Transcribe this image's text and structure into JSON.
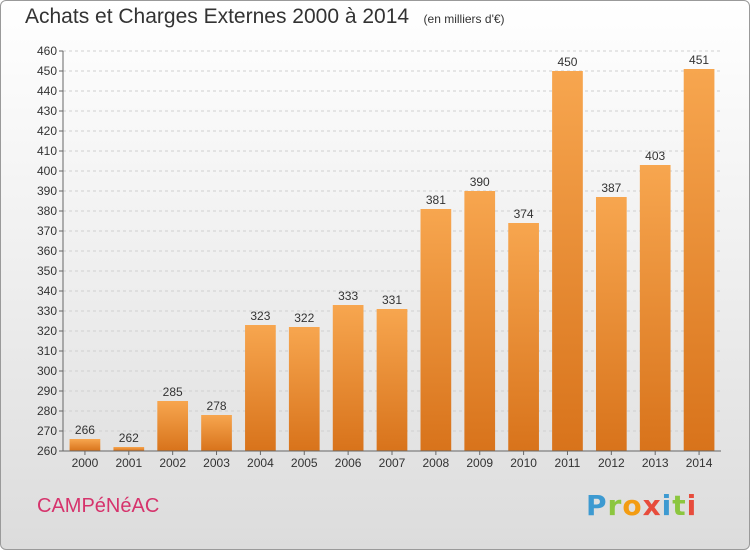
{
  "header": {
    "title": "Achats et Charges Externes 2000 à 2014",
    "subtitle": "(en milliers d'€)"
  },
  "footer": {
    "commune": "CAMPéNéAC",
    "logo_letters": [
      "P",
      "r",
      "o",
      "x",
      "i",
      "t",
      "i"
    ],
    "logo_colors": [
      "#3d9ad1",
      "#8cc63f",
      "#f39c12",
      "#e74c3c",
      "#3d9ad1",
      "#8cc63f",
      "#e74c3c"
    ]
  },
  "chart_data": {
    "type": "bar",
    "categories": [
      "2000",
      "2001",
      "2002",
      "2003",
      "2004",
      "2005",
      "2006",
      "2007",
      "2008",
      "2009",
      "2010",
      "2011",
      "2012",
      "2013",
      "2014"
    ],
    "values": [
      266,
      262,
      285,
      278,
      323,
      322,
      333,
      331,
      381,
      390,
      374,
      450,
      387,
      403,
      451
    ],
    "ylim": [
      260,
      460
    ],
    "yticks": [
      260,
      270,
      280,
      290,
      300,
      310,
      320,
      330,
      340,
      350,
      360,
      370,
      380,
      390,
      400,
      410,
      420,
      430,
      440,
      450,
      460
    ],
    "grid": true,
    "bar_color_light": "#f7a64f",
    "bar_color_dark": "#d8731b"
  }
}
